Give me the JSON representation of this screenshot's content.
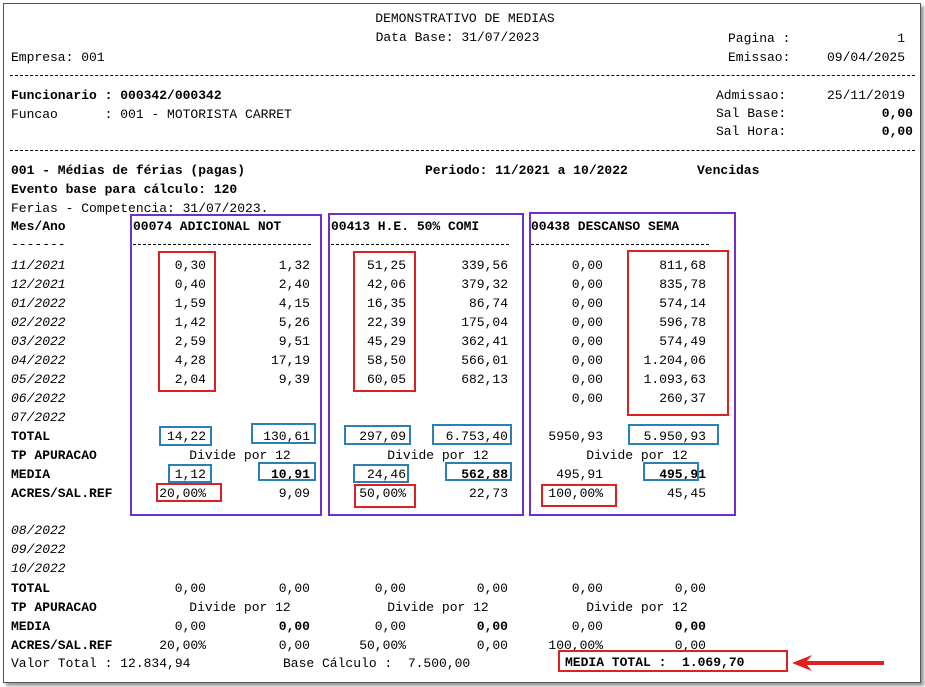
{
  "header": {
    "title": "DEMONSTRATIVO DE MEDIAS",
    "data_base": "Data Base: 31/07/2023",
    "pagina_label": "Pagina :",
    "pagina_value": "1",
    "empresa": "Empresa: 001",
    "emissao_label": "Emissao:",
    "emissao_value": "09/04/2025"
  },
  "employee": {
    "funcionario": "Funcionario : 000342/000342",
    "funcao": "Funcao      : 001 - MOTORISTA CARRET",
    "admissao_label": "Admissao:",
    "admissao_value": "25/11/2019",
    "sal_base_label": "Sal Base:",
    "sal_base_value": "0,00",
    "sal_hora_label": "Sal Hora:",
    "sal_hora_value": "0,00"
  },
  "section": {
    "title": "001 - Médias de férias (pagas)",
    "periodo": "Periodo: 11/2021 a 10/2022",
    "status": "Vencidas",
    "evento": "Evento base para cálculo: 120",
    "ferias": "Ferias - Competencia: 31/07/2023.",
    "mes_ano": "Mes/Ano",
    "mes_ano_dash": "-------"
  },
  "columns": [
    {
      "code": "00074 ADICIONAL NOT"
    },
    {
      "code": "00413 H.E. 50% COMI"
    },
    {
      "code": "00438 DESCANSO SEMA"
    }
  ],
  "rows1": [
    {
      "month": "11/2021",
      "v": [
        "0,30",
        "1,32",
        "51,25",
        "339,56",
        "0,00",
        "811,68"
      ]
    },
    {
      "month": "12/2021",
      "v": [
        "0,40",
        "2,40",
        "42,06",
        "379,32",
        "0,00",
        "835,78"
      ]
    },
    {
      "month": "01/2022",
      "v": [
        "1,59",
        "4,15",
        "16,35",
        "86,74",
        "0,00",
        "574,14"
      ]
    },
    {
      "month": "02/2022",
      "v": [
        "1,42",
        "5,26",
        "22,39",
        "175,04",
        "0,00",
        "596,78"
      ]
    },
    {
      "month": "03/2022",
      "v": [
        "2,59",
        "9,51",
        "45,29",
        "362,41",
        "0,00",
        "574,49"
      ]
    },
    {
      "month": "04/2022",
      "v": [
        "4,28",
        "17,19",
        "58,50",
        "566,01",
        "0,00",
        "1.204,06"
      ]
    },
    {
      "month": "05/2022",
      "v": [
        "2,04",
        "9,39",
        "60,05",
        "682,13",
        "0,00",
        "1.093,63"
      ]
    },
    {
      "month": "06/2022",
      "v": [
        "",
        "",
        "",
        "",
        "0,00",
        "260,37"
      ]
    },
    {
      "month": "07/2022",
      "v": [
        "",
        "",
        "",
        "",
        "",
        ""
      ]
    }
  ],
  "totals1": {
    "total_label": "TOTAL",
    "total": [
      "14,22",
      "130,61",
      "297,09",
      "6.753,40",
      "5950,93",
      "5.950,93"
    ],
    "tp_label": "TP APURACAO",
    "tp": [
      "Divide por 12",
      "Divide por 12",
      "Divide por 12"
    ],
    "media_label": "MEDIA",
    "media": [
      "1,12",
      "10,91",
      "24,46",
      "562,88",
      "495,91",
      "495,91"
    ],
    "acres_label": "ACRES/SAL.REF",
    "acres": [
      "20,00%",
      "9,09",
      "50,00%",
      "22,73",
      "100,00%",
      "45,45"
    ]
  },
  "rows2": [
    {
      "month": "08/2022"
    },
    {
      "month": "09/2022"
    },
    {
      "month": "10/2022"
    }
  ],
  "totals2": {
    "total_label": "TOTAL",
    "total": [
      "0,00",
      "0,00",
      "0,00",
      "0,00",
      "0,00",
      "0,00"
    ],
    "tp_label": "TP APURACAO",
    "tp": [
      "Divide por 12",
      "Divide por 12",
      "Divide por 12"
    ],
    "media_label": "MEDIA",
    "media": [
      "0,00",
      "0,00",
      "0,00",
      "0,00",
      "0,00",
      "0,00"
    ],
    "acres_label": "ACRES/SAL.REF",
    "acres": [
      "20,00%",
      "0,00",
      "50,00%",
      "0,00",
      "100,00%",
      "0,00"
    ]
  },
  "footer": {
    "valor_total": "Valor Total : 12.834,94",
    "base_calculo": "Base Cálculo :  7.500,00",
    "media_total": "MEDIA TOTAL :  1.069,70"
  },
  "annotation_colors": {
    "purple": "#7030d0",
    "red": "#e02020",
    "blue": "#2a7fb8"
  }
}
